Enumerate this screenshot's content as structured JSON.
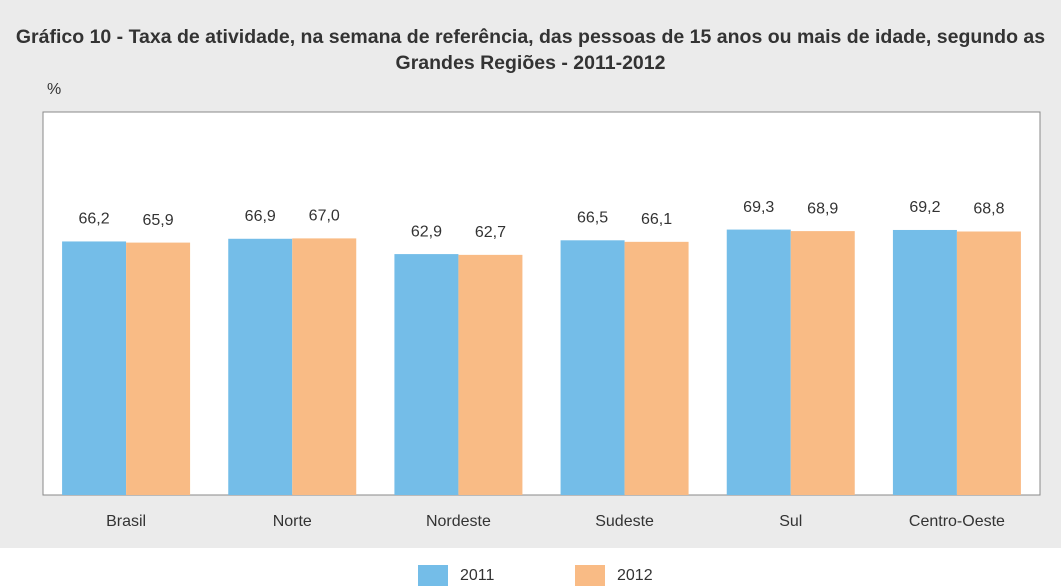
{
  "chart_data": {
    "type": "bar",
    "title": "Gráfico 10 - Taxa de atividade, na semana de referência, das pessoas de 15 anos ou mais de idade, segundo as Grandes Regiões - 2011-2012",
    "y_label": "%",
    "categories": [
      "Brasil",
      "Norte",
      "Nordeste",
      "Sudeste",
      "Sul",
      "Centro-Oeste"
    ],
    "series": [
      {
        "name": "2011",
        "color": "#74bde8",
        "values": [
          66.2,
          66.9,
          62.9,
          66.5,
          69.3,
          69.2
        ],
        "value_labels": [
          "66,2",
          "66,9",
          "62,9",
          "66,5",
          "69,3",
          "69,2"
        ]
      },
      {
        "name": "2012",
        "color": "#f9bb85",
        "values": [
          65.9,
          67.0,
          62.7,
          66.1,
          68.9,
          68.8
        ],
        "value_labels": [
          "65,9",
          "67,0",
          "62,7",
          "66,1",
          "68,9",
          "68,8"
        ]
      }
    ],
    "ylim": [
      0,
      100
    ]
  }
}
